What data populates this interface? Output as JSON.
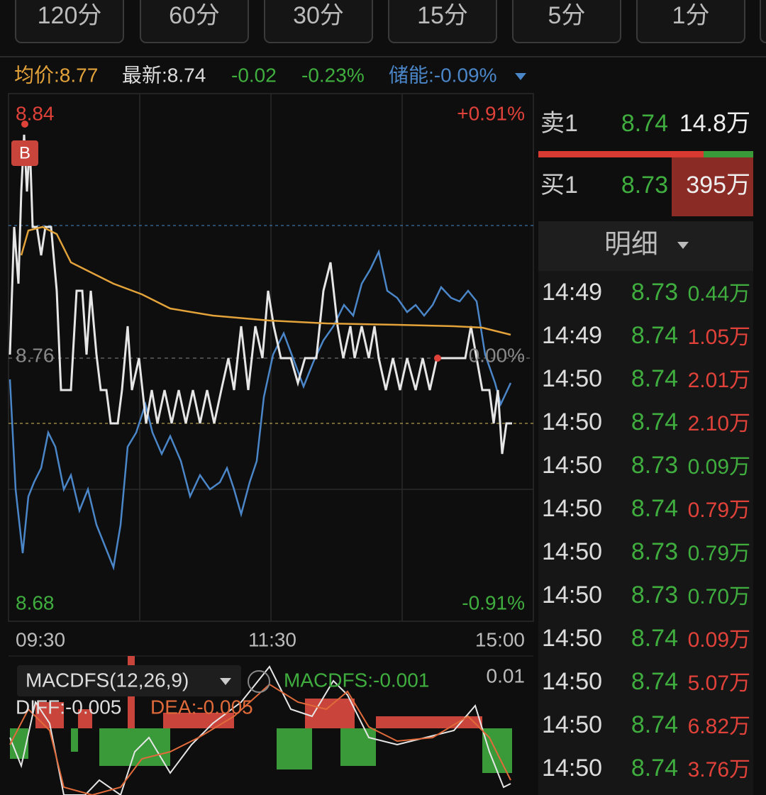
{
  "tabs": [
    "120分",
    "60分",
    "30分",
    "15分",
    "5分",
    "1分"
  ],
  "info": {
    "avg": "均价:8.77",
    "latest": "最新:8.74",
    "change": "-0.02",
    "percent": "-0.23%",
    "energy": "储能:-0.09%"
  },
  "chart": {
    "top_price": "8.84",
    "top_percent": "+0.91%",
    "mid_price": "8.76",
    "mid_percent": "0.00%",
    "bottom_price": "8.68",
    "bottom_percent": "-0.91%",
    "marker": "B",
    "times": [
      "09:30",
      "11:30",
      "15:00"
    ]
  },
  "macd": {
    "name": "MACDFS(12,26,9)",
    "value": "MACDFS:-0.001",
    "top": "0.01",
    "diff": "DIFF:-0.005",
    "dea": "DEA:-0.005"
  },
  "orderbook": {
    "sell": {
      "label": "卖1",
      "price": "8.74",
      "volume": "14.8万"
    },
    "buy": {
      "label": "买1",
      "price": "8.73",
      "volume": "395万"
    }
  },
  "detail": {
    "title": "明细",
    "rows": [
      {
        "time": "14:49",
        "price": "8.73",
        "volume": "0.44万",
        "volume_color": "#3fae3f"
      },
      {
        "time": "14:49",
        "price": "8.74",
        "volume": "1.05万",
        "volume_color": "#e0423a"
      },
      {
        "time": "14:50",
        "price": "8.74",
        "volume": "2.01万",
        "volume_color": "#e0423a"
      },
      {
        "time": "14:50",
        "price": "8.74",
        "volume": "2.10万",
        "volume_color": "#e0423a"
      },
      {
        "time": "14:50",
        "price": "8.73",
        "volume": "0.09万",
        "volume_color": "#3fae3f"
      },
      {
        "time": "14:50",
        "price": "8.74",
        "volume": "0.79万",
        "volume_color": "#e0423a"
      },
      {
        "time": "14:50",
        "price": "8.73",
        "volume": "0.79万",
        "volume_color": "#3fae3f"
      },
      {
        "time": "14:50",
        "price": "8.73",
        "volume": "0.70万",
        "volume_color": "#3fae3f"
      },
      {
        "time": "14:50",
        "price": "8.74",
        "volume": "0.09万",
        "volume_color": "#e0423a"
      },
      {
        "time": "14:50",
        "price": "8.74",
        "volume": "5.07万",
        "volume_color": "#e0423a"
      },
      {
        "time": "14:50",
        "price": "8.74",
        "volume": "6.82万",
        "volume_color": "#e0423a"
      },
      {
        "time": "14:50",
        "price": "8.74",
        "volume": "3.76万",
        "volume_color": "#e0423a"
      }
    ]
  }
}
